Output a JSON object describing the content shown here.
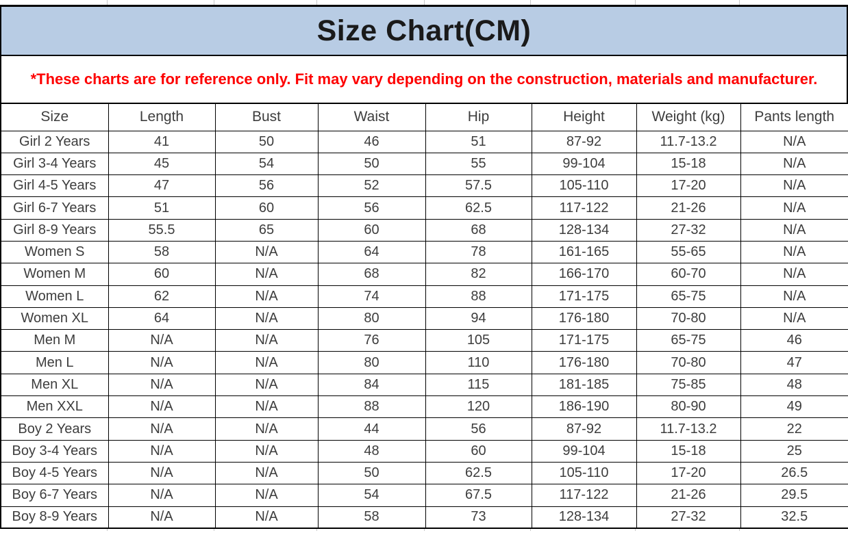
{
  "title": "Size Chart(CM)",
  "disclaimer": "*These charts are for reference only. Fit may vary depending on the construction, materials and manufacturer.",
  "colors": {
    "title_bar_bg": "#b8cce4",
    "title_text": "#1a1a1a",
    "disclaimer_text": "#fe0000",
    "table_border": "#000000",
    "cell_text": "#3d3d3d",
    "gridline": "#c9c9c9"
  },
  "chart_data": {
    "type": "table",
    "title": "Size Chart(CM)",
    "columns": [
      "Size",
      "Length",
      "Bust",
      "Waist",
      "Hip",
      "Height",
      "Weight (kg)",
      "Pants length"
    ],
    "rows": [
      [
        "Girl 2 Years",
        "41",
        "50",
        "46",
        "51",
        "87-92",
        "11.7-13.2",
        "N/A"
      ],
      [
        "Girl 3-4 Years",
        "45",
        "54",
        "50",
        "55",
        "99-104",
        "15-18",
        "N/A"
      ],
      [
        "Girl 4-5 Years",
        "47",
        "56",
        "52",
        "57.5",
        "105-110",
        "17-20",
        "N/A"
      ],
      [
        "Girl 6-7 Years",
        "51",
        "60",
        "56",
        "62.5",
        "117-122",
        "21-26",
        "N/A"
      ],
      [
        "Girl 8-9 Years",
        "55.5",
        "65",
        "60",
        "68",
        "128-134",
        "27-32",
        "N/A"
      ],
      [
        "Women S",
        "58",
        "N/A",
        "64",
        "78",
        "161-165",
        "55-65",
        "N/A"
      ],
      [
        "Women M",
        "60",
        "N/A",
        "68",
        "82",
        "166-170",
        "60-70",
        "N/A"
      ],
      [
        "Women L",
        "62",
        "N/A",
        "74",
        "88",
        "171-175",
        "65-75",
        "N/A"
      ],
      [
        "Women XL",
        "64",
        "N/A",
        "80",
        "94",
        "176-180",
        "70-80",
        "N/A"
      ],
      [
        "Men M",
        "N/A",
        "N/A",
        "76",
        "105",
        "171-175",
        "65-75",
        "46"
      ],
      [
        "Men L",
        "N/A",
        "N/A",
        "80",
        "110",
        "176-180",
        "70-80",
        "47"
      ],
      [
        "Men XL",
        "N/A",
        "N/A",
        "84",
        "115",
        "181-185",
        "75-85",
        "48"
      ],
      [
        "Men XXL",
        "N/A",
        "N/A",
        "88",
        "120",
        "186-190",
        "80-90",
        "49"
      ],
      [
        "Boy 2 Years",
        "N/A",
        "N/A",
        "44",
        "56",
        "87-92",
        "11.7-13.2",
        "22"
      ],
      [
        "Boy 3-4 Years",
        "N/A",
        "N/A",
        "48",
        "60",
        "99-104",
        "15-18",
        "25"
      ],
      [
        "Boy 4-5 Years",
        "N/A",
        "N/A",
        "50",
        "62.5",
        "105-110",
        "17-20",
        "26.5"
      ],
      [
        "Boy 6-7 Years",
        "N/A",
        "N/A",
        "54",
        "67.5",
        "117-122",
        "21-26",
        "29.5"
      ],
      [
        "Boy 8-9 Years",
        "N/A",
        "N/A",
        "58",
        "73",
        "128-134",
        "27-32",
        "32.5"
      ]
    ]
  }
}
